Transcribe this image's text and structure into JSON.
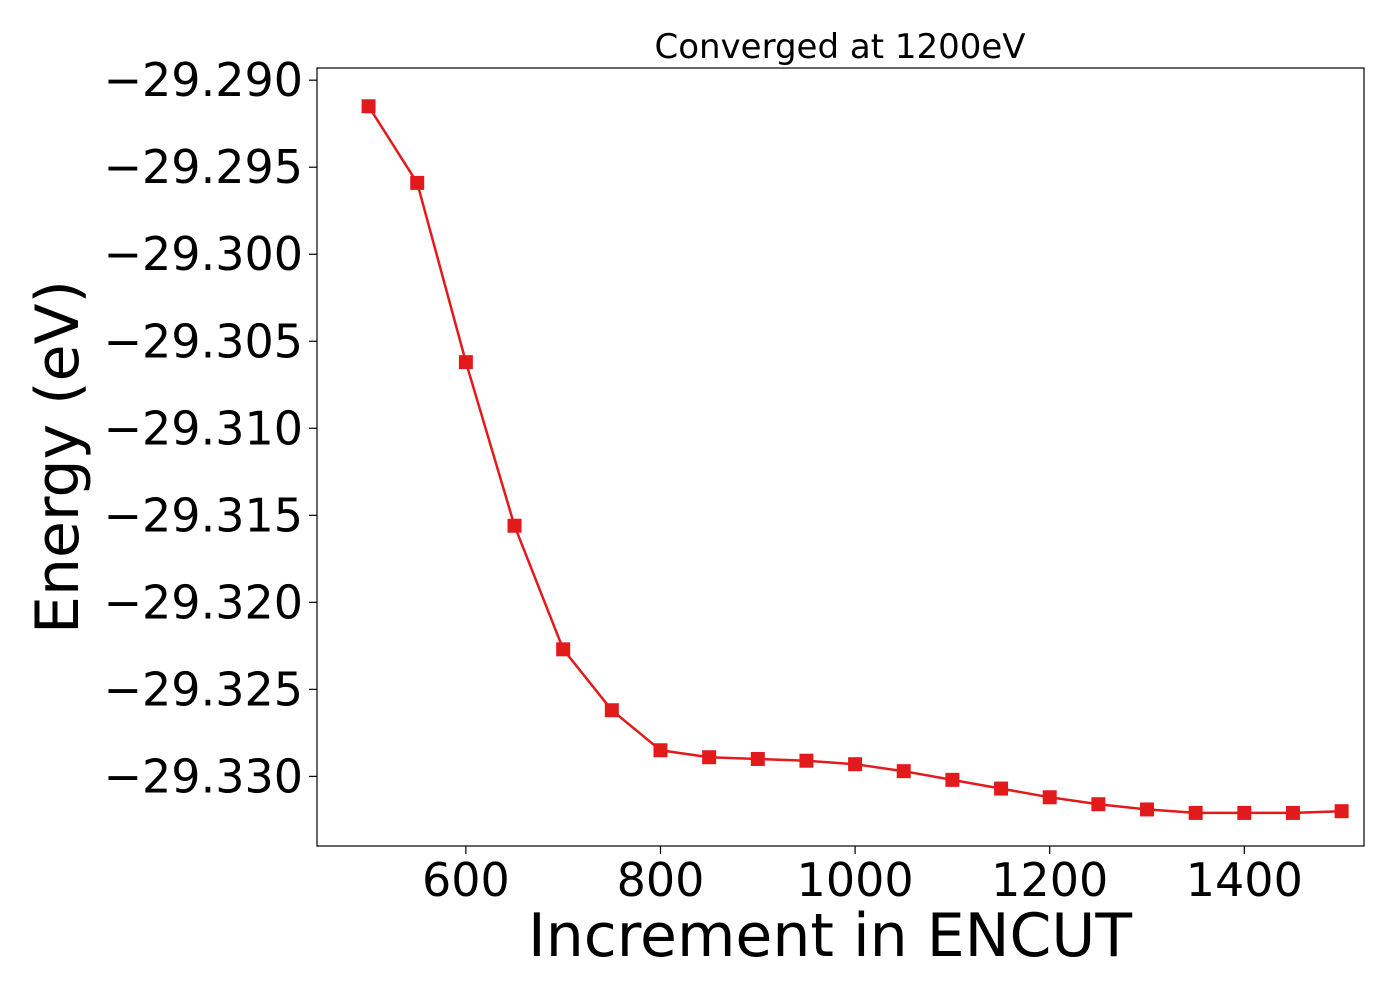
{
  "chart_data": {
    "type": "line",
    "title": "Converged at 1200eV",
    "xlabel": "Increment in ENCUT",
    "ylabel": "Energy (eV)",
    "xlim": [
      447,
      1523
    ],
    "ylim": [
      -29.334,
      -29.2893
    ],
    "xticks": [
      600,
      800,
      1000,
      1200,
      1400
    ],
    "yticks": [
      -29.29,
      -29.295,
      -29.3,
      -29.305,
      -29.31,
      -29.315,
      -29.32,
      -29.325,
      -29.33
    ],
    "ytick_labels": [
      "−29.290",
      "−29.295",
      "−29.300",
      "−29.305",
      "−29.310",
      "−29.315",
      "−29.320",
      "−29.325",
      "−29.330"
    ],
    "grid": false,
    "series": [
      {
        "color": "#e31a1c",
        "marker": "square",
        "x": [
          500,
          550,
          600,
          650,
          700,
          750,
          800,
          850,
          900,
          950,
          1000,
          1050,
          1100,
          1150,
          1200,
          1250,
          1300,
          1350,
          1400,
          1450,
          1500
        ],
        "y": [
          -29.2915,
          -29.2959,
          -29.3062,
          -29.3156,
          -29.3227,
          -29.3262,
          -29.3285,
          -29.3289,
          -29.329,
          -29.3291,
          -29.3293,
          -29.3297,
          -29.3302,
          -29.3307,
          -29.3312,
          -29.3316,
          -29.3319,
          -29.3321,
          -29.3321,
          -29.3321,
          -29.332
        ]
      }
    ]
  }
}
